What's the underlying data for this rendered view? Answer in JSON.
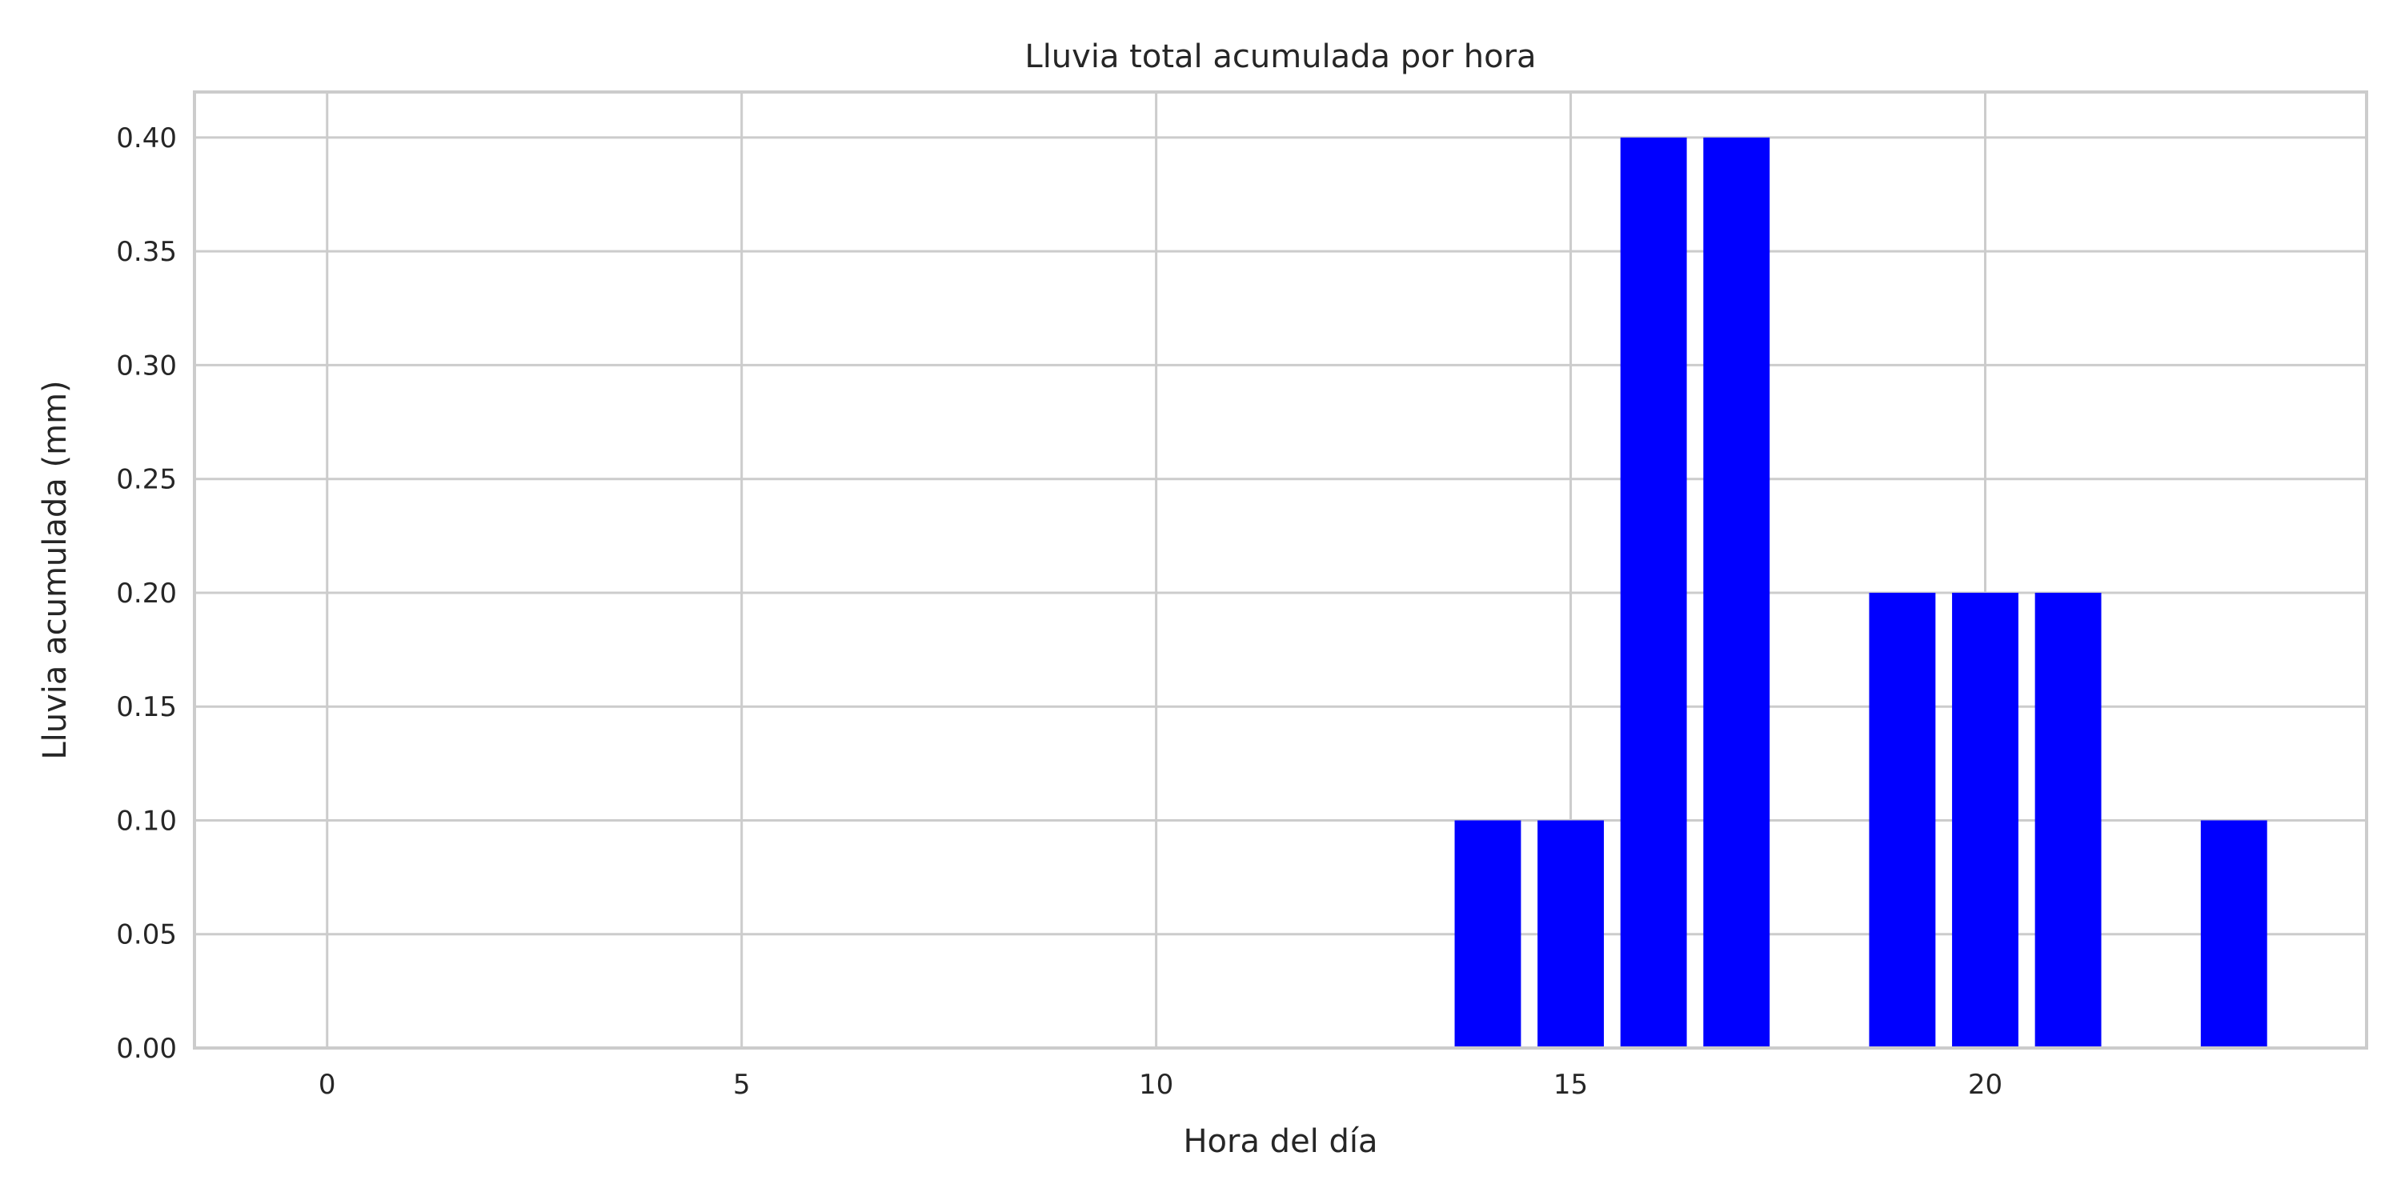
{
  "chart_data": {
    "type": "bar",
    "title": "Lluvia total acumulada por hora",
    "xlabel": "Hora del día",
    "ylabel": "Lluvia acumulada (mm)",
    "x": [
      14,
      15,
      16,
      17,
      19,
      20,
      21,
      23
    ],
    "values": [
      0.1,
      0.1,
      0.4,
      0.4,
      0.2,
      0.2,
      0.2,
      0.1
    ],
    "xlim": [
      -1.6,
      24.6
    ],
    "ylim": [
      0,
      0.42
    ],
    "xticks": [
      0,
      5,
      10,
      15,
      20
    ],
    "yticks": [
      0.0,
      0.05,
      0.1,
      0.15,
      0.2,
      0.25,
      0.3,
      0.35,
      0.4
    ],
    "xtick_labels": [
      "0",
      "5",
      "10",
      "15",
      "20"
    ],
    "ytick_labels": [
      "0.00",
      "0.05",
      "0.10",
      "0.15",
      "0.20",
      "0.25",
      "0.30",
      "0.35",
      "0.40"
    ],
    "bar_color": "#0000ff",
    "grid": true
  }
}
